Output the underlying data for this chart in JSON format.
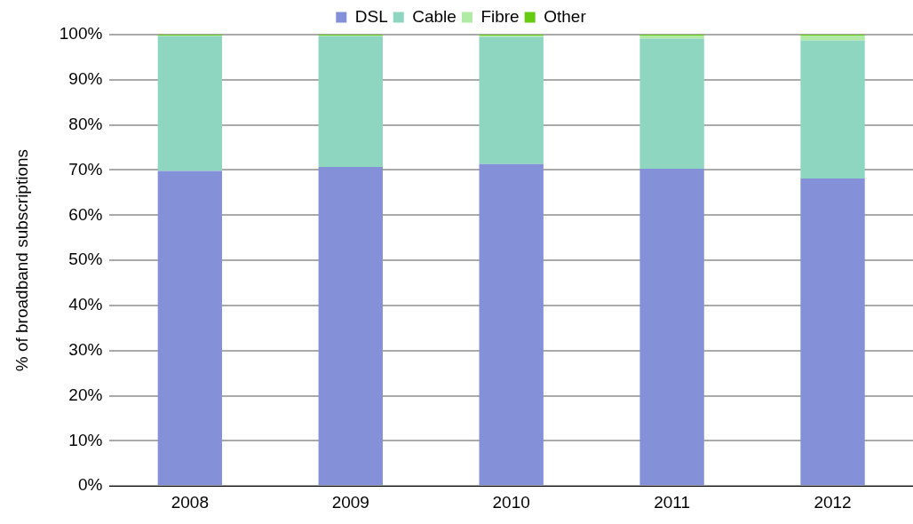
{
  "chart_data": {
    "type": "bar",
    "stacked": true,
    "ylabel": "% of broadband subscriptions",
    "categories": [
      "2008",
      "2009",
      "2010",
      "2011",
      "2012"
    ],
    "series": [
      {
        "name": "DSL",
        "color": "#8490d8",
        "values": [
          69.8,
          70.7,
          71.3,
          70.3,
          68.1
        ]
      },
      {
        "name": "Cable",
        "color": "#8ed6c0",
        "values": [
          29.9,
          29.0,
          28.2,
          28.8,
          30.6
        ]
      },
      {
        "name": "Fibre",
        "color": "#b0eaa4",
        "values": [
          0.1,
          0.1,
          0.3,
          0.7,
          1.1
        ]
      },
      {
        "name": "Other",
        "color": "#66cc11",
        "values": [
          0.2,
          0.2,
          0.2,
          0.2,
          0.2
        ]
      }
    ],
    "ylim": [
      0,
      100
    ],
    "yticks": [
      {
        "value": 0,
        "label": "0%"
      },
      {
        "value": 10,
        "label": "10%"
      },
      {
        "value": 20,
        "label": "20%"
      },
      {
        "value": 30,
        "label": "30%"
      },
      {
        "value": 40,
        "label": "40%"
      },
      {
        "value": 50,
        "label": "50%"
      },
      {
        "value": 60,
        "label": "60%"
      },
      {
        "value": 70,
        "label": "70%"
      },
      {
        "value": 80,
        "label": "80%"
      },
      {
        "value": 90,
        "label": "90%"
      },
      {
        "value": 100,
        "label": "100%"
      }
    ],
    "grid": "y",
    "legend": "top"
  }
}
